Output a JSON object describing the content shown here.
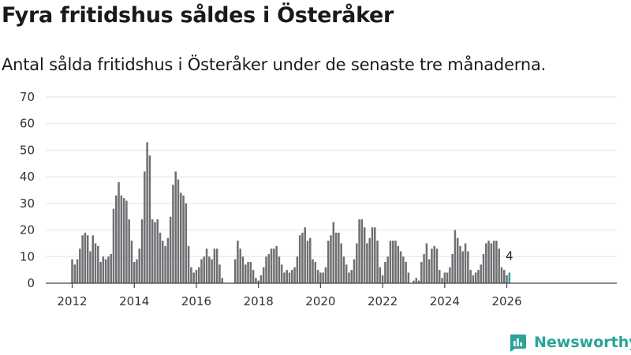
{
  "header": {
    "title": "Fyra fritidshus såldes i Österåker",
    "subtitle": "Antal sålda fritidshus i Österåker under de senaste tre månaderna."
  },
  "brand": {
    "name": "Newsworthy",
    "icon": "newsworthy-logo-icon",
    "color": "#2aa39a"
  },
  "chart_data": {
    "type": "bar",
    "title": "Fyra fritidshus såldes i Österåker",
    "subtitle": "Antal sålda fritidshus i Österåker under de senaste tre månaderna.",
    "xlabel": "",
    "ylabel": "",
    "ylim": [
      0,
      70
    ],
    "yticks": [
      0,
      10,
      20,
      30,
      40,
      50,
      60,
      70
    ],
    "xticks": [
      "2012",
      "2014",
      "2016",
      "2018",
      "2020",
      "2022",
      "2024",
      "2026"
    ],
    "grid": true,
    "legend": "none",
    "start": "2012-01",
    "bar_color": "#6f6f73",
    "highlight_color": "#2aa39a",
    "highlight_label": "4",
    "values": [
      9,
      7,
      9,
      13,
      18,
      19,
      18,
      12,
      18,
      15,
      14,
      8,
      10,
      9,
      10,
      11,
      28,
      33,
      38,
      33,
      32,
      31,
      24,
      16,
      8,
      9,
      13,
      24,
      42,
      53,
      48,
      24,
      23,
      24,
      19,
      16,
      14,
      17,
      25,
      37,
      42,
      39,
      34,
      33,
      30,
      14,
      6,
      4,
      5,
      6,
      9,
      10,
      13,
      10,
      9,
      13,
      13,
      7,
      2,
      0,
      0,
      0,
      0,
      9,
      16,
      13,
      10,
      7,
      8,
      8,
      5,
      2,
      1,
      3,
      6,
      10,
      11,
      13,
      13,
      14,
      10,
      7,
      4,
      5,
      4,
      5,
      6,
      10,
      18,
      19,
      21,
      16,
      17,
      9,
      8,
      5,
      4,
      4,
      6,
      16,
      18,
      23,
      19,
      19,
      15,
      10,
      7,
      4,
      5,
      9,
      15,
      24,
      24,
      21,
      15,
      17,
      21,
      21,
      16,
      6,
      3,
      8,
      10,
      16,
      16,
      16,
      14,
      12,
      10,
      8,
      4,
      0,
      1,
      2,
      1,
      8,
      11,
      15,
      9,
      13,
      14,
      13,
      5,
      2,
      4,
      4,
      6,
      11,
      20,
      17,
      14,
      12,
      15,
      12,
      5,
      3,
      4,
      5,
      7,
      11,
      15,
      16,
      15,
      16,
      16,
      13,
      6,
      5,
      3,
      4
    ]
  }
}
